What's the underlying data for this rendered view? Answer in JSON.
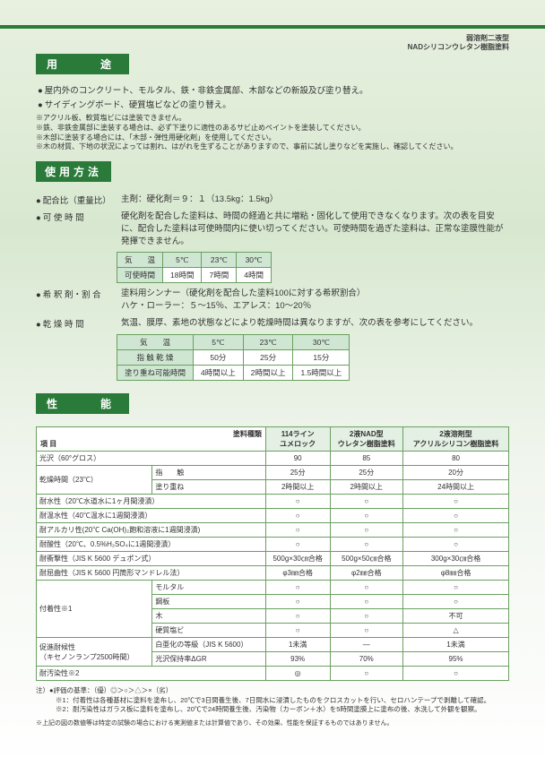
{
  "header": {
    "line1": "弱溶剤二液型",
    "line2": "NADシリコンウレタン樹脂塗料"
  },
  "sections": {
    "usage": {
      "title": "用　　途",
      "bullets": [
        "屋内外のコンクリート、モルタル、鉄・非鉄金属部、木部などの新設及び塗り替え。",
        "サイディングボード、硬質塩ビなどの塗り替え。"
      ],
      "notes": [
        "アクリル板、軟質塩ビには塗装できません。",
        "鉄、非鉄金属部に塗装する場合は、必ず下塗りに適性のあるサビ止めペイントを塗装してください。",
        "木部に塗装する場合には、「木部・弾性用硬化剤」を使用してください。",
        "木の材質、下地の状況によっては割れ、はがれを生ずることがありますので、事前に試し塗りなどを実施し、確認してください。"
      ]
    },
    "method": {
      "title": "使用方法",
      "rows": [
        {
          "label": "配合比（重量比）",
          "text": "主剤：硬化剤＝９：１（13.5kg：1.5kg）"
        },
        {
          "label": "可 使 時 間",
          "text": "硬化剤を配合した塗料は、時間の経過と共に増粘・固化して使用できなくなります。次の表を目安に、配合した塗料は可使時間内に使い切ってください。可使時間を過ぎた塗料は、正常な塗膜性能が発揮できません。"
        },
        {
          "label": "希 釈 剤・割 合",
          "text": "塗料用シンナー（硬化剤を配合した塗料100に対する希釈割合）\nハケ・ローラー：５～15％、エアレス：10～20％"
        },
        {
          "label": "乾 燥 時 間",
          "text": "気温、膜厚、素地の状態などにより乾燥時間は異なりますが、次の表を参考にしてください。"
        }
      ],
      "table1": {
        "head": [
          "気　　温",
          "5℃",
          "23℃",
          "30℃"
        ],
        "rows": [
          [
            "可使時間",
            "18時間",
            "7時間",
            "4時間"
          ]
        ]
      },
      "table2": {
        "head": [
          "気　　温",
          "5℃",
          "23℃",
          "30℃"
        ],
        "rows": [
          [
            "指 触 乾 燥",
            "50分",
            "25分",
            "15分"
          ],
          [
            "塗り重ね可能時間",
            "4時間以上",
            "2時間以上",
            "1.5時間以上"
          ]
        ]
      }
    },
    "performance": {
      "title": "性　　能",
      "header": {
        "item": "項 目",
        "paint_type": "塗料種類",
        "col1a": "114ライン",
        "col1b": "ユメロック",
        "col2a": "2液NAD型",
        "col2b": "ウレタン樹脂塗料",
        "col3a": "2液溶剤型",
        "col3b": "アクリルシリコン樹脂塗料"
      },
      "rows": [
        {
          "l": "光沢（60°グロス）",
          "v": [
            "90",
            "85",
            "80"
          ]
        },
        {
          "l": "乾燥時間（23℃）",
          "sub": [
            {
              "s": "指　　触",
              "v": [
                "25分",
                "25分",
                "20分"
              ]
            },
            {
              "s": "塗り重ね",
              "v": [
                "2時間以上",
                "2時間以上",
                "24時間以上"
              ]
            }
          ]
        },
        {
          "l": "耐水性（20℃水道水に1ヶ月間浸漬）",
          "v": [
            "○",
            "○",
            "○"
          ]
        },
        {
          "l": "耐温水性（40℃温水に1週間浸漬）",
          "v": [
            "○",
            "○",
            "○"
          ]
        },
        {
          "l": "耐アルカリ性(20℃ Ca(OH)₂飽和溶液に1週間浸漬)",
          "v": [
            "○",
            "○",
            "○"
          ]
        },
        {
          "l": "耐酸性（20℃、0.5%H₂SO₄に1週間浸漬）",
          "v": [
            "○",
            "○",
            "○"
          ]
        },
        {
          "l": "耐衝撃性（JIS K 5600 デュポン式）",
          "v": [
            "500g×30㎝合格",
            "500g×50㎝合格",
            "300g×30㎝合格"
          ]
        },
        {
          "l": "耐屈曲性（JIS K 5600 円筒形マンドレル法）",
          "v": [
            "φ3㎜合格",
            "φ2㎜合格",
            "φ8㎜合格"
          ]
        },
        {
          "l": "付着性※1",
          "sub": [
            {
              "s": "モルタル",
              "v": [
                "○",
                "○",
                "○"
              ]
            },
            {
              "s": "鋼板",
              "v": [
                "○",
                "○",
                "○"
              ]
            },
            {
              "s": "木",
              "v": [
                "○",
                "○",
                "不可"
              ]
            },
            {
              "s": "硬質塩ビ",
              "v": [
                "○",
                "○",
                "△"
              ]
            }
          ]
        },
        {
          "l": "促進耐候性\n（キセノンランプ2500時間）",
          "sub": [
            {
              "s": "白亜化の等級（JIS K 5600）",
              "v": [
                "1未満",
                "―",
                "1未満"
              ]
            },
            {
              "s": "光沢保持率ΔGR",
              "v": [
                "93%",
                "70%",
                "95%"
              ]
            }
          ]
        },
        {
          "l": "耐汚染性※2",
          "v": [
            "◎",
            "○",
            "○"
          ]
        }
      ],
      "footnotes": {
        "lead": "●評価の基準：（優）◎＞○＞△＞×（劣）",
        "items": [
          "※1：付着性は各種基材に塗料を塗布し、20℃で3日間養生後、7日間水に浸漬したものをクロスカットを行い、セロハンテープで剥離して確認。",
          "※2：耐汚染性はガラス板に塗料を塗布し、20℃で24時間養生後、汚染物（カーボン＋水）を5時間塗膜上に塗布の後、水洗して外観を観察。"
        ]
      },
      "disclaimer": "上記の図の数値等は特定の試験の場合における実測値または計算値であり、その効果、性能を保証するものではありません。"
    }
  }
}
